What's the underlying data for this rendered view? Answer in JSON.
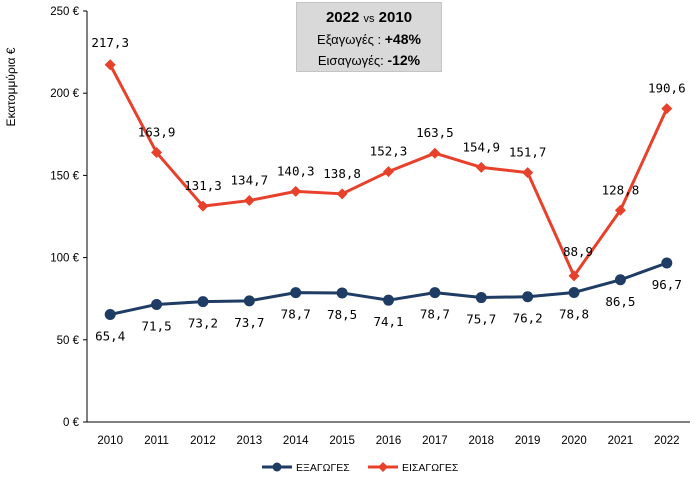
{
  "chart_data": {
    "type": "line",
    "ylabel": "Εκατομμύρια €",
    "xlabel": "",
    "ylim": [
      0,
      250
    ],
    "yticks": [
      0,
      50,
      100,
      150,
      200,
      250
    ],
    "ytick_labels": [
      "0 €",
      "50 €",
      "100 €",
      "150 €",
      "200 €",
      "250 €"
    ],
    "categories": [
      "2010",
      "2011",
      "2012",
      "2013",
      "2014",
      "2015",
      "2016",
      "2017",
      "2018",
      "2019",
      "2020",
      "2021",
      "2022"
    ],
    "series": [
      {
        "name": "ΕΞΑΓΩΓΕΣ",
        "color": "#1f3c64",
        "marker": "circle",
        "values": [
          65.4,
          71.5,
          73.2,
          73.7,
          78.7,
          78.5,
          74.1,
          78.7,
          75.7,
          76.2,
          78.8,
          86.5,
          96.7
        ],
        "labels": [
          "65,4",
          "71,5",
          "73,2",
          "73,7",
          "78,7",
          "78,5",
          "74,1",
          "78,7",
          "75,7",
          "76,2",
          "78,8",
          "86,5",
          "96,7"
        ]
      },
      {
        "name": "ΕΙΣΑΓΩΓΕΣ",
        "color": "#e8412b",
        "marker": "diamond",
        "values": [
          217.3,
          163.9,
          131.3,
          134.7,
          140.3,
          138.8,
          152.3,
          163.5,
          154.9,
          151.7,
          88.9,
          128.8,
          190.6
        ],
        "labels": [
          "217,3",
          "163,9",
          "131,3",
          "134,7",
          "140,3",
          "138,8",
          "152,3",
          "163,5",
          "154,9",
          "151,7",
          "88,9",
          "128,8",
          "190,6"
        ]
      }
    ],
    "grid": false,
    "legend": "bottom"
  },
  "callout": {
    "year_a": "2022",
    "vs": "vs",
    "year_b": "2010",
    "exports_label": "Εξαγωγές :",
    "exports_value": "+48%",
    "imports_label": "Εισαγωγές:",
    "imports_value": "-12%"
  }
}
